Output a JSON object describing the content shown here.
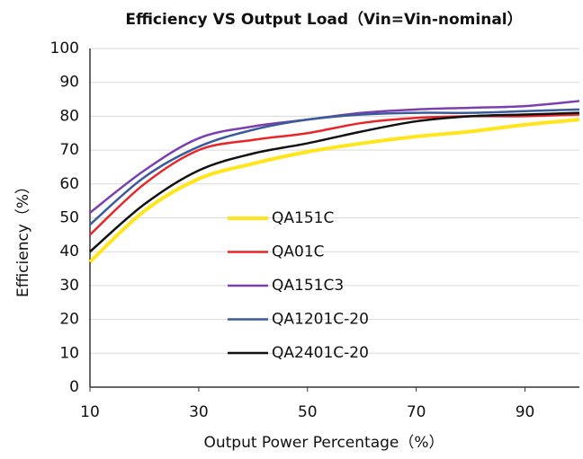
{
  "chart_data": {
    "type": "line",
    "title": "Efficiency VS Output Load（Vin=Vin-nominal）",
    "x_label": "Output Power Percentage（%）",
    "y_label": "Efficiency（%）",
    "x": [
      10,
      20,
      30,
      40,
      50,
      60,
      70,
      80,
      90,
      100
    ],
    "series": [
      {
        "name": "QA151C",
        "color": "#ffe51a",
        "values": [
          37,
          52,
          61.5,
          66,
          69.5,
          72,
          74,
          75.5,
          77.5,
          79
        ]
      },
      {
        "name": "QA01C",
        "color": "#e8262a",
        "values": [
          45,
          60,
          70,
          73,
          75,
          78,
          79.5,
          80,
          80,
          80.5
        ]
      },
      {
        "name": "QA151C3",
        "color": "#7b3fb0",
        "values": [
          51.5,
          64,
          73.5,
          77,
          79,
          81,
          82,
          82.5,
          83,
          84.5
        ]
      },
      {
        "name": "QA1201C-20",
        "color": "#3b5b9a",
        "values": [
          48,
          62,
          71,
          76,
          79,
          80.5,
          81,
          81,
          81.5,
          82
        ]
      },
      {
        "name": "QA2401C-20",
        "color": "#111111",
        "values": [
          40,
          54,
          64,
          69,
          72,
          75.5,
          78.5,
          80,
          80.5,
          81
        ]
      }
    ],
    "xlim": [
      10,
      100
    ],
    "xticks": [
      10,
      30,
      50,
      70,
      90
    ],
    "ylim": [
      0,
      100
    ],
    "yticks": [
      0,
      10,
      20,
      30,
      40,
      50,
      60,
      70,
      80,
      90,
      100
    ],
    "grid": true
  }
}
